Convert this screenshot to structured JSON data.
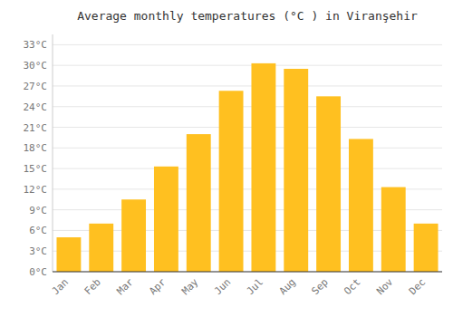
{
  "chart_data": {
    "type": "bar",
    "title": "Average monthly temperatures (°C ) in Viranşehir",
    "categories": [
      "Jan",
      "Feb",
      "Mar",
      "Apr",
      "May",
      "Jun",
      "Jul",
      "Aug",
      "Sep",
      "Oct",
      "Nov",
      "Dec"
    ],
    "values": [
      5.0,
      7.0,
      10.5,
      15.3,
      20.0,
      26.3,
      30.3,
      29.5,
      25.5,
      19.3,
      12.3,
      7.0
    ],
    "color": "#FFC020",
    "ylim": [
      0,
      34.5
    ],
    "yticks": [
      {
        "value": 0,
        "label": "0°C"
      },
      {
        "value": 3,
        "label": "3°C"
      },
      {
        "value": 6,
        "label": "6°C"
      },
      {
        "value": 9,
        "label": "9°C"
      },
      {
        "value": 12,
        "label": "12°C"
      },
      {
        "value": 15,
        "label": "15°C"
      },
      {
        "value": 18,
        "label": "18°C"
      },
      {
        "value": 21,
        "label": "21°C"
      },
      {
        "value": 24,
        "label": "24°C"
      },
      {
        "value": 27,
        "label": "27°C"
      },
      {
        "value": 30,
        "label": "30°C"
      },
      {
        "value": 33,
        "label": "33°C"
      }
    ],
    "grid": true
  }
}
